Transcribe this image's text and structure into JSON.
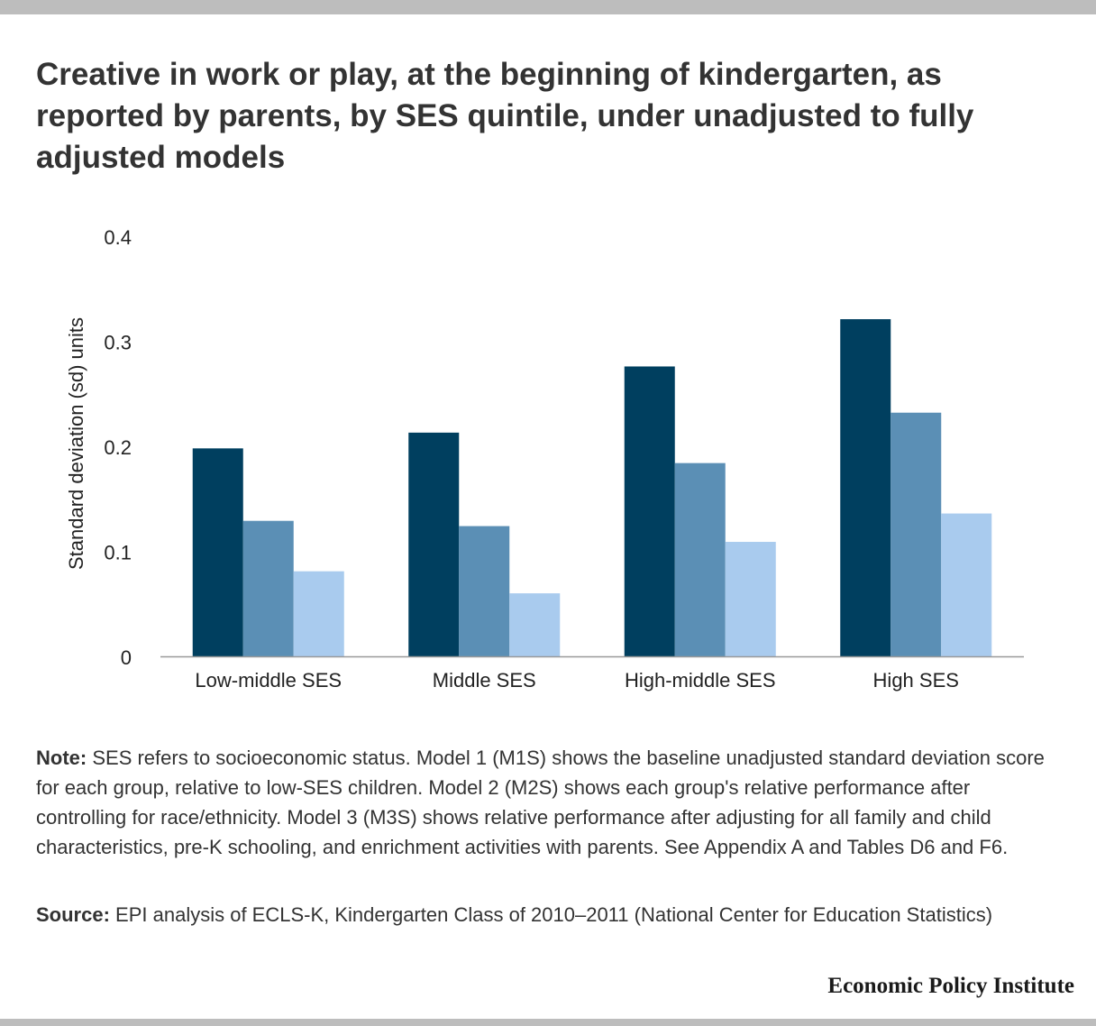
{
  "header": {
    "title": "Creative in work or play, at the beginning of kindergarten, as reported by parents, by SES quintile, under unadjusted to fully adjusted models"
  },
  "chart_data": {
    "type": "bar",
    "categories": [
      "Low-middle SES",
      "Middle SES",
      "High-middle SES",
      "High SES"
    ],
    "series": [
      {
        "name": "",
        "color": "#003f5f",
        "values": [
          0.198,
          0.213,
          0.276,
          0.321
        ]
      },
      {
        "name": "",
        "color": "#5b8fb5",
        "values": [
          0.129,
          0.124,
          0.184,
          0.232
        ]
      },
      {
        "name": "",
        "color": "#a9cbee",
        "values": [
          0.081,
          0.06,
          0.109,
          0.136
        ]
      }
    ],
    "ylabel": "Standard deviation (sd) units",
    "yticks": [
      "0",
      "0.1",
      "0.2",
      "0.3",
      "0.4"
    ],
    "ylim": [
      0,
      0.4
    ],
    "grid": false,
    "legend": "none"
  },
  "footer": {
    "note_label": "Note:",
    "note_text": "SES refers to socioeconomic status. Model 1 (M1S) shows the baseline unadjusted standard deviation score for each group, relative to low-SES children. Model 2 (M2S) shows each group's relative performance after controlling for race/ethnicity. Model 3 (M3S) shows relative performance after adjusting for all family and child characteristics, pre-K schooling, and enrichment activities with parents. See Appendix A and Tables D6 and F6.",
    "source_label": "Source:",
    "source_text": "EPI analysis of ECLS-K, Kindergarten Class of 2010–2011 (National Center for Education Statistics)",
    "brand": "Economic Policy Institute"
  }
}
